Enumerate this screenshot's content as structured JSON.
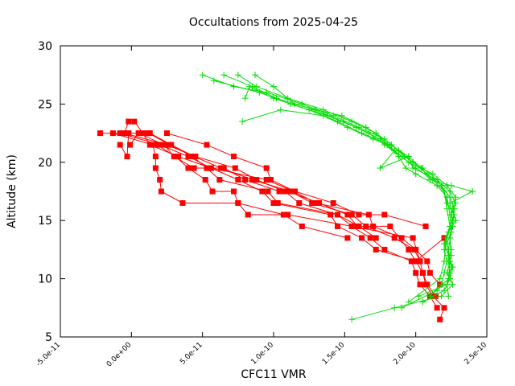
{
  "chart_data": {
    "type": "line",
    "title": "Occultations from 2025-04-25",
    "xlabel": "CFC11 VMR",
    "ylabel": "Altitude (km)",
    "xlim": [
      -5e-11,
      2.5e-10
    ],
    "ylim": [
      5,
      30
    ],
    "x_ticks": [
      {
        "value": -5e-11,
        "label": "-5.0e-11"
      },
      {
        "value": 0,
        "label": "0.0e+00"
      },
      {
        "value": 5e-11,
        "label": "5.0e-11"
      },
      {
        "value": 1e-10,
        "label": "1.0e-10"
      },
      {
        "value": 1.5e-10,
        "label": "1.5e-10"
      },
      {
        "value": 2e-10,
        "label": "2.0e-10"
      },
      {
        "value": 2.5e-10,
        "label": "2.5e-10"
      }
    ],
    "y_ticks": [
      {
        "value": 5,
        "label": "5"
      },
      {
        "value": 10,
        "label": "10"
      },
      {
        "value": 15,
        "label": "15"
      },
      {
        "value": 20,
        "label": "20"
      },
      {
        "value": 25,
        "label": "25"
      },
      {
        "value": 30,
        "label": "30"
      }
    ],
    "grid": false,
    "colors": {
      "red_series": "#ff0000",
      "green_series": "#00dd00"
    },
    "series": [
      {
        "color": "#ff0000",
        "marker": "square",
        "points": [
          [
            2.17e-10,
            6.5
          ],
          [
            2.2e-10,
            7.5
          ],
          [
            2.12e-10,
            8.5
          ],
          [
            2.07e-10,
            9.5
          ],
          [
            2.05e-10,
            10.5
          ],
          [
            2e-10,
            11.5
          ],
          [
            1.72e-10,
            12.5
          ],
          [
            1.62e-10,
            13.5
          ],
          [
            1.45e-10,
            14.5
          ],
          [
            1.4e-10,
            15.5
          ],
          [
            1e-10,
            16.5
          ],
          [
            9.2e-11,
            17.5
          ],
          [
            7.5e-11,
            18.5
          ],
          [
            5.6e-11,
            19.5
          ],
          [
            3.3e-11,
            20.5
          ],
          [
            1.3e-11,
            21.5
          ],
          [
            8e-12,
            22.5
          ],
          [
            2e-12,
            23.5
          ]
        ]
      },
      {
        "color": "#ff0000",
        "marker": "square",
        "points": [
          [
            2.15e-10,
            7.5
          ],
          [
            2.1e-10,
            8.5
          ],
          [
            2.03e-10,
            9.5
          ],
          [
            2e-10,
            10.5
          ],
          [
            1.97e-10,
            11.5
          ],
          [
            1.78e-10,
            12.5
          ],
          [
            1.68e-10,
            13.5
          ],
          [
            1.55e-10,
            14.5
          ],
          [
            1.45e-10,
            15.5
          ],
          [
            1.18e-10,
            16.5
          ],
          [
            1.08e-10,
            17.5
          ],
          [
            8.8e-11,
            18.5
          ],
          [
            7.3e-11,
            19.5
          ],
          [
            4.5e-11,
            20.5
          ],
          [
            2.5e-11,
            21.5
          ],
          [
            -5e-12,
            22.5
          ],
          [
            -2e-12,
            23.5
          ]
        ]
      },
      {
        "color": "#ff0000",
        "marker": "square",
        "points": [
          [
            2.14e-10,
            8.5
          ],
          [
            2.08e-10,
            9.5
          ],
          [
            2.05e-10,
            10.5
          ],
          [
            2.03e-10,
            11.5
          ],
          [
            1.99e-10,
            12.5
          ],
          [
            1.85e-10,
            13.5
          ],
          [
            1.65e-10,
            14.5
          ],
          [
            1.55e-10,
            15.5
          ],
          [
            1.27e-10,
            16.5
          ],
          [
            1.12e-10,
            17.5
          ],
          [
            8.5e-11,
            18.5
          ],
          [
            6.3e-11,
            19.5
          ],
          [
            4.4e-11,
            20.5
          ],
          [
            2.8e-11,
            21.5
          ],
          [
            1.3e-11,
            22.5
          ]
        ]
      },
      {
        "color": "#ff0000",
        "marker": "square",
        "points": [
          [
            2.17e-10,
            9.5
          ],
          [
            2.1e-10,
            10.5
          ],
          [
            2.08e-10,
            11.5
          ],
          [
            2e-10,
            12.5
          ],
          [
            1.9e-10,
            13.5
          ],
          [
            1.7e-10,
            14.5
          ],
          [
            1.67e-10,
            15.5
          ],
          [
            1.3e-10,
            16.5
          ],
          [
            1.14e-10,
            17.5
          ],
          [
            9.5e-11,
            18.5
          ],
          [
            5.6e-11,
            19.5
          ],
          [
            4e-11,
            20.5
          ],
          [
            2e-11,
            21.5
          ],
          [
            -8e-12,
            22.5
          ],
          [
            -2.2e-11,
            22.5
          ]
        ]
      },
      {
        "color": "#ff0000",
        "marker": "square",
        "points": [
          [
            2.2e-10,
            13.5
          ],
          [
            2e-10,
            11.5
          ],
          [
            1.95e-10,
            12.5
          ],
          [
            1.82e-10,
            14.5
          ],
          [
            1.59e-10,
            14.5
          ],
          [
            1.52e-10,
            15.5
          ],
          [
            1.32e-10,
            16.5
          ],
          [
            1.1e-10,
            17.5
          ],
          [
            1.04e-10,
            17.5
          ],
          [
            8e-11,
            18.5
          ],
          [
            6.5e-11,
            19.5
          ],
          [
            4.4e-11,
            19.5
          ],
          [
            3e-11,
            20.5
          ],
          [
            2.3e-11,
            21.5
          ],
          [
            5e-12,
            22.5
          ],
          [
            -1e-12,
            21.5
          ]
        ]
      },
      {
        "color": "#ff0000",
        "marker": "square",
        "points": [
          [
            2.07e-10,
            14.5
          ],
          [
            1.78e-10,
            15.5
          ],
          [
            1.6e-10,
            15.5
          ],
          [
            1.42e-10,
            16.5
          ],
          [
            1.15e-10,
            17.5
          ],
          [
            9.8e-11,
            18.5
          ],
          [
            9.5e-11,
            19.5
          ],
          [
            7.2e-11,
            20.5
          ],
          [
            5.3e-11,
            21.5
          ],
          [
            2.5e-11,
            22.5
          ]
        ]
      },
      {
        "color": "#ff0000",
        "marker": "square",
        "points": [
          [
            2.03e-10,
            11.5
          ],
          [
            1.98e-10,
            13.5
          ],
          [
            1.55e-10,
            14.5
          ],
          [
            1.1e-10,
            15.5
          ],
          [
            8.2e-11,
            15.5
          ],
          [
            7.5e-11,
            16.5
          ],
          [
            7.2e-11,
            17.5
          ],
          [
            5.7e-11,
            17.5
          ],
          [
            5.2e-11,
            18.5
          ],
          [
            4e-11,
            19.5
          ],
          [
            3.1e-11,
            20.5
          ],
          [
            1.8e-11,
            21.5
          ]
        ]
      },
      {
        "color": "#ff0000",
        "marker": "square",
        "points": [
          [
            1.52e-10,
            13.5
          ],
          [
            1.2e-10,
            14.5
          ],
          [
            1.07e-10,
            15.5
          ],
          [
            7.5e-11,
            16.5
          ],
          [
            3.6e-11,
            16.5
          ],
          [
            2.1e-11,
            17.5
          ],
          [
            2e-11,
            18.5
          ],
          [
            1.7e-11,
            19.5
          ],
          [
            1.7e-11,
            20.5
          ],
          [
            1.5e-11,
            21.5
          ],
          [
            -1.3e-11,
            22.5
          ]
        ]
      },
      {
        "color": "#ff0000",
        "marker": "square",
        "points": [
          [
            1.72e-10,
            13.5
          ],
          [
            1.6e-10,
            14.5
          ],
          [
            1.45e-10,
            15.5
          ],
          [
            1.03e-10,
            16.5
          ],
          [
            9.6e-11,
            17.5
          ],
          [
            6.2e-11,
            18.5
          ],
          [
            5.3e-11,
            19.5
          ],
          [
            4.3e-11,
            20.5
          ],
          [
            2.7e-11,
            21.5
          ],
          [
            1.2e-11,
            22.5
          ],
          [
            -2e-12,
            22.5
          ],
          [
            -3e-12,
            20.5
          ],
          [
            -8e-12,
            21.5
          ]
        ]
      },
      {
        "color": "#00dd00",
        "marker": "plus",
        "points": [
          [
            2.23e-10,
            8.5
          ],
          [
            2.22e-10,
            9.5
          ],
          [
            2.24e-10,
            10.5
          ],
          [
            2.23e-10,
            11.5
          ],
          [
            2.25e-10,
            12.5
          ],
          [
            2.24e-10,
            13.5
          ],
          [
            2.26e-10,
            14.5
          ],
          [
            2.25e-10,
            15.5
          ],
          [
            2.28e-10,
            16.5
          ],
          [
            2.24e-10,
            17.5
          ],
          [
            2.15e-10,
            18.5
          ],
          [
            2.05e-10,
            19.5
          ],
          [
            1.92e-10,
            20.5
          ],
          [
            1.83e-10,
            21.5
          ],
          [
            1.72e-10,
            22.5
          ],
          [
            1.55e-10,
            23.5
          ],
          [
            1.35e-10,
            24.5
          ],
          [
            1.1e-10,
            25.5
          ],
          [
            8.8e-11,
            26.5
          ],
          [
            7.5e-11,
            27.5
          ]
        ]
      },
      {
        "color": "#00dd00",
        "marker": "plus",
        "points": [
          [
            2.1e-10,
            8.5
          ],
          [
            2.18e-10,
            9.5
          ],
          [
            2.2e-10,
            10.5
          ],
          [
            2.22e-10,
            11.5
          ],
          [
            2.2e-10,
            12.5
          ],
          [
            2.21e-10,
            13.5
          ],
          [
            2.24e-10,
            14.5
          ],
          [
            2.27e-10,
            15.5
          ],
          [
            2.22e-10,
            16.5
          ],
          [
            2.2e-10,
            17.5
          ],
          [
            2.12e-10,
            18.5
          ],
          [
            2e-10,
            19.5
          ],
          [
            1.9e-10,
            20.5
          ],
          [
            1.78e-10,
            21.5
          ],
          [
            1.67e-10,
            22.5
          ],
          [
            1.49e-10,
            23.5
          ],
          [
            1.29e-10,
            24.5
          ],
          [
            1.02e-10,
            25.5
          ],
          [
            8.5e-11,
            26.5
          ],
          [
            6.5e-11,
            27.5
          ]
        ]
      },
      {
        "color": "#00dd00",
        "marker": "plus",
        "points": [
          [
            2.05e-10,
            8.0
          ],
          [
            2.2e-10,
            9.0
          ],
          [
            2.24e-10,
            10.0
          ],
          [
            2.26e-10,
            11.0
          ],
          [
            2.23e-10,
            12.0
          ],
          [
            2.2e-10,
            13.0
          ],
          [
            2.23e-10,
            14.0
          ],
          [
            2.28e-10,
            15.0
          ],
          [
            2.26e-10,
            16.0
          ],
          [
            2.28e-10,
            17.0
          ],
          [
            2.22e-10,
            18.0
          ],
          [
            2.12e-10,
            19.0
          ],
          [
            1.95e-10,
            20.0
          ],
          [
            1.85e-10,
            21.0
          ],
          [
            1.75e-10,
            22.0
          ],
          [
            1.58e-10,
            23.0
          ],
          [
            1.38e-10,
            24.0
          ],
          [
            1.12e-10,
            25.0
          ],
          [
            9e-11,
            26.0
          ],
          [
            5.8e-11,
            27.0
          ]
        ]
      },
      {
        "color": "#00dd00",
        "marker": "plus",
        "points": [
          [
            1.9e-10,
            7.5
          ],
          [
            2.15e-10,
            9.0
          ],
          [
            2.23e-10,
            10.0
          ],
          [
            2.24e-10,
            11.5
          ],
          [
            2.22e-10,
            13.0
          ],
          [
            2.26e-10,
            14.5
          ],
          [
            2.27e-10,
            16.0
          ],
          [
            2.24e-10,
            17.0
          ],
          [
            2.18e-10,
            18.0
          ],
          [
            2.08e-10,
            19.0
          ],
          [
            1.98e-10,
            20.0
          ],
          [
            1.88e-10,
            21.0
          ],
          [
            1.78e-10,
            22.0
          ],
          [
            1.6e-10,
            23.0
          ],
          [
            1.42e-10,
            24.0
          ],
          [
            1.2e-10,
            25.0
          ],
          [
            9.5e-11,
            26.0
          ],
          [
            7.2e-11,
            26.5
          ],
          [
            5e-11,
            27.5
          ]
        ]
      },
      {
        "color": "#00dd00",
        "marker": "plus",
        "points": [
          [
            1.55e-10,
            6.5
          ],
          [
            1.85e-10,
            7.5
          ],
          [
            2.18e-10,
            8.5
          ],
          [
            2.26e-10,
            9.5
          ],
          [
            2.22e-10,
            10.5
          ],
          [
            2.25e-10,
            12.0
          ],
          [
            2.24e-10,
            13.5
          ],
          [
            2.26e-10,
            15.0
          ],
          [
            2.24e-10,
            16.5
          ],
          [
            2.4e-10,
            17.5
          ],
          [
            2.25e-10,
            18.0
          ],
          [
            2.1e-10,
            18.5
          ],
          [
            2.04e-10,
            19.5
          ],
          [
            1.95e-10,
            20.5
          ],
          [
            1.82e-10,
            21.5
          ],
          [
            1.62e-10,
            22.5
          ],
          [
            1.45e-10,
            23.5
          ],
          [
            1.25e-10,
            24.5
          ],
          [
            1e-10,
            25.5
          ],
          [
            8.3e-11,
            26.5
          ],
          [
            8e-11,
            25.5
          ]
        ]
      },
      {
        "color": "#00dd00",
        "marker": "plus",
        "points": [
          [
            2.02e-10,
            8.5
          ],
          [
            2.22e-10,
            9.5
          ],
          [
            2.25e-10,
            11.0
          ],
          [
            2.23e-10,
            12.5
          ],
          [
            2.25e-10,
            14.0
          ],
          [
            2.24e-10,
            15.5
          ],
          [
            2.22e-10,
            17.0
          ],
          [
            2.15e-10,
            18.0
          ],
          [
            2e-10,
            19.0
          ],
          [
            1.93e-10,
            19.5
          ],
          [
            1.88e-10,
            20.5
          ],
          [
            1.8e-10,
            21.5
          ],
          [
            1.7e-10,
            22.0
          ],
          [
            1.52e-10,
            23.0
          ],
          [
            1.35e-10,
            24.0
          ],
          [
            1.05e-10,
            24.5
          ],
          [
            7.8e-11,
            23.5
          ]
        ]
      },
      {
        "color": "#00dd00",
        "marker": "plus",
        "points": [
          [
            1.95e-10,
            8.0
          ],
          [
            2.17e-10,
            10.0
          ],
          [
            2.2e-10,
            11.5
          ],
          [
            2.21e-10,
            13.0
          ],
          [
            2.24e-10,
            14.5
          ],
          [
            2.22e-10,
            16.0
          ],
          [
            2.2e-10,
            17.5
          ],
          [
            2.15e-10,
            18.5
          ],
          [
            1.98e-10,
            19.5
          ],
          [
            1.95e-10,
            20.5
          ],
          [
            1.75e-10,
            19.5
          ],
          [
            1.85e-10,
            21.0
          ],
          [
            1.72e-10,
            22.5
          ],
          [
            1.65e-10,
            23.0
          ],
          [
            1.48e-10,
            24.0
          ],
          [
            1.3e-10,
            24.5
          ],
          [
            1.15e-10,
            25.0
          ],
          [
            1e-10,
            26.5
          ],
          [
            8.7e-11,
            27.5
          ]
        ]
      }
    ]
  }
}
